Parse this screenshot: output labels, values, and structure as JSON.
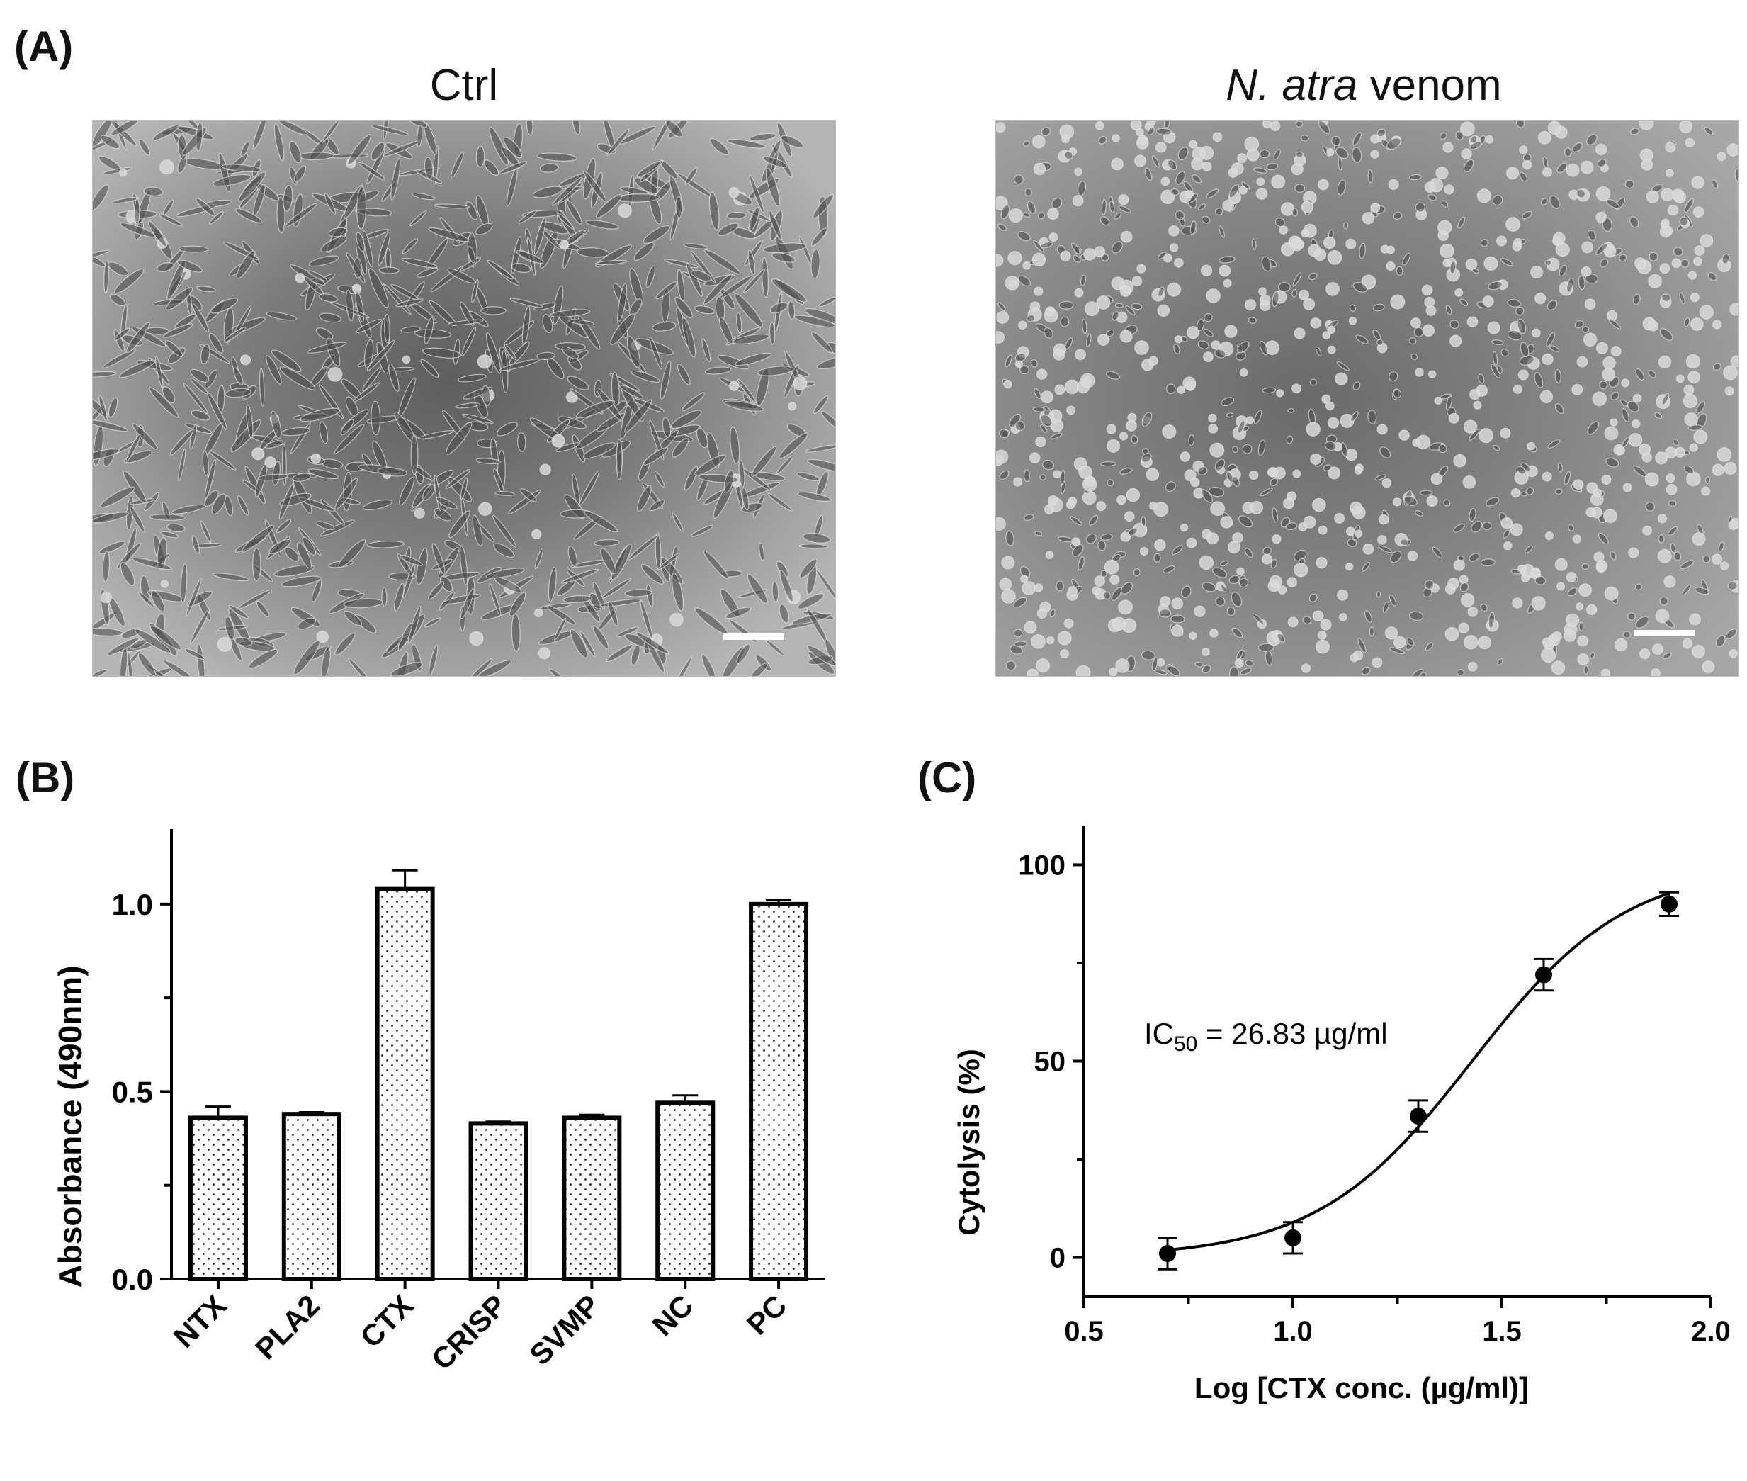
{
  "panelA": {
    "label": "(A)",
    "images": [
      {
        "title_parts": [
          {
            "text": "Ctrl",
            "italic": false
          }
        ]
      },
      {
        "title_parts": [
          {
            "text": "N. atra",
            "italic": true
          },
          {
            "text": " venom",
            "italic": false
          }
        ]
      }
    ]
  },
  "panelB": {
    "label": "(B)"
  },
  "panelC": {
    "label": "(C)",
    "annotation": {
      "prefix": "IC",
      "sub": "50",
      "rest": " = 26.83 µg/ml"
    }
  },
  "chart_data": [
    {
      "type": "bar",
      "ylabel": "Absorbance (490nm)",
      "xlabel": "",
      "categories": [
        "NTX",
        "PLA2",
        "CTX",
        "CRISP",
        "SVMP",
        "NC",
        "PC"
      ],
      "values": [
        0.43,
        0.44,
        1.04,
        0.415,
        0.43,
        0.47,
        1.0
      ],
      "errors": [
        0.03,
        0.005,
        0.05,
        0.005,
        0.008,
        0.02,
        0.01
      ],
      "ylim": [
        0.0,
        1.2
      ],
      "yticks": [
        "0.0",
        "0.5",
        "1.0"
      ],
      "fill": "dotted"
    },
    {
      "type": "scatter",
      "xlabel": "Log [CTX conc. (µg/ml)]",
      "ylabel": "Cytolysis (%)",
      "x": [
        0.7,
        1.0,
        1.3,
        1.6,
        1.9
      ],
      "y": [
        1,
        5,
        36,
        72,
        90
      ],
      "errors": [
        4,
        4,
        4,
        4,
        3
      ],
      "xlim": [
        0.5,
        2.0
      ],
      "ylim": [
        -10,
        110
      ],
      "xticks": [
        "0.5",
        "1.0",
        "1.5",
        "2.0"
      ],
      "yticks": [
        "0",
        "50",
        "100"
      ],
      "fit": {
        "bottom": 0,
        "top": 100,
        "logIC50": 1.4287,
        "hill": 2.35,
        "x_range": [
          0.7,
          1.9
        ]
      }
    }
  ]
}
